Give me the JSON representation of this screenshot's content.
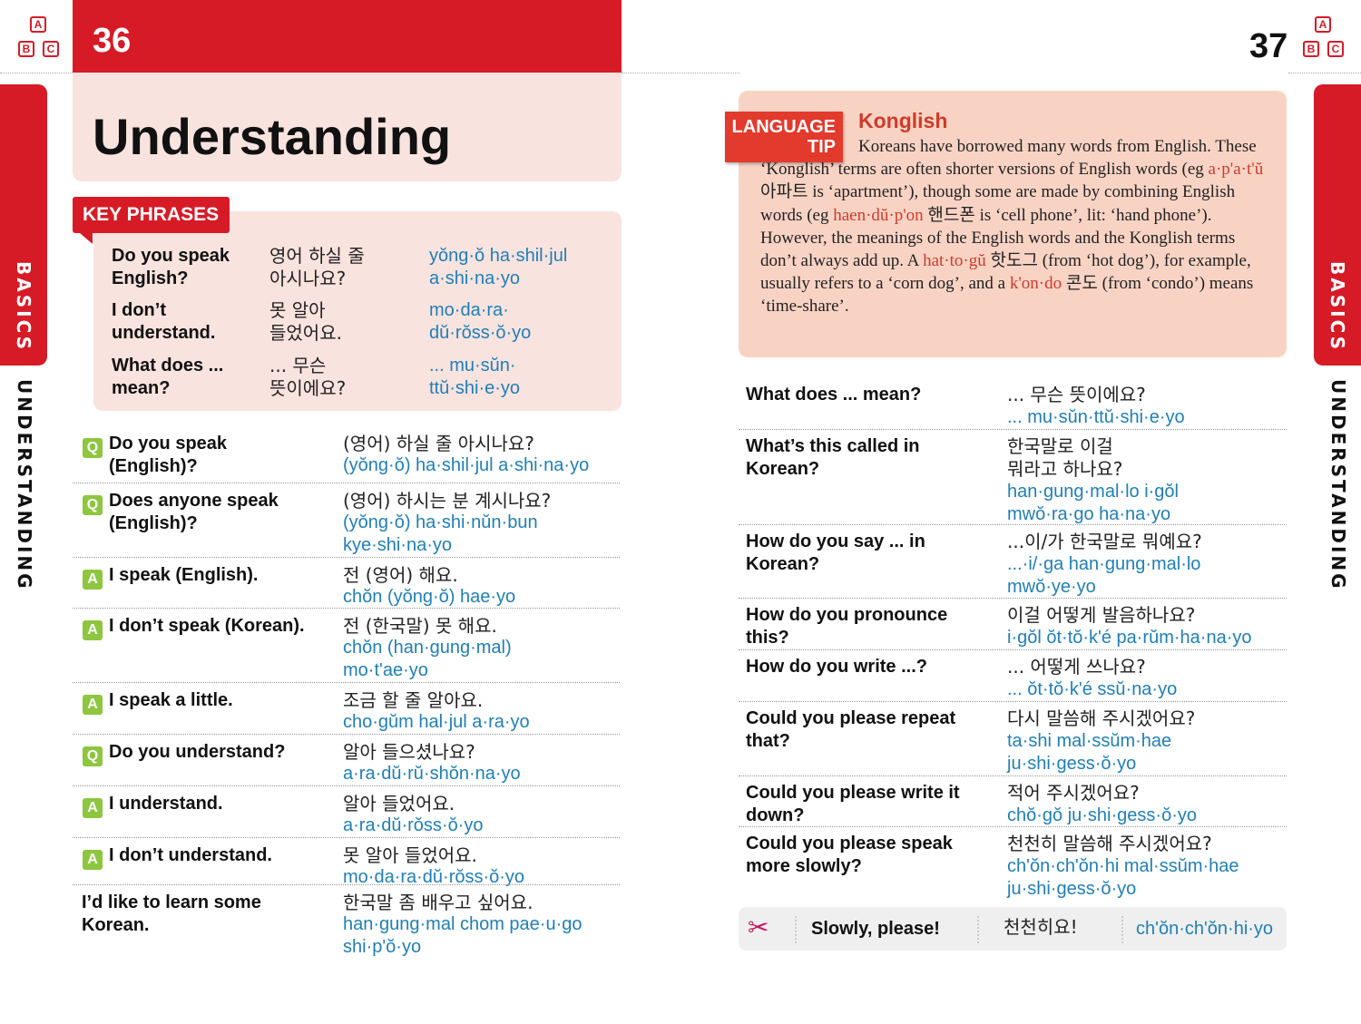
{
  "left": {
    "page_number": "36",
    "title": "Understanding",
    "side_tab": "BASICS",
    "side_label": "UNDERSTANDING",
    "blocks": [
      "A",
      "B",
      "C"
    ],
    "key_phrases": {
      "label": "KEY PHRASES",
      "rows": [
        {
          "en": "Do you speak\nEnglish?",
          "ko": "영어 하실 줄\n아시나요?",
          "rom": "yŏng·ŏ ha·shil·jul\na·shi·na·yo"
        },
        {
          "en": "I don’t\nunderstand.",
          "ko": "못 알아\n들었어요.",
          "rom": "mo·da·ra·\ndŭ·rŏss·ŏ·yo"
        },
        {
          "en": "What does ...\nmean?",
          "ko": "... 무슨\n뜻이에요?",
          "rom": "... mu·sŭn·\nttŭ·shi·e·yo"
        }
      ]
    },
    "phrases": [
      {
        "badge": "Q",
        "en": "Do you speak\n(English)?",
        "ko": "(영어) 하실 줄 아시나요?",
        "rom": "(yŏng·ŏ) ha·shil·jul a·shi·na·yo"
      },
      {
        "badge": "Q",
        "en": "Does anyone speak\n(English)?",
        "ko": "(영어) 하시는 분 계시나요?",
        "rom": "(yŏng·ŏ) ha·shi·nŭn·bun\nkye·shi·na·yo"
      },
      {
        "badge": "A",
        "en": "I speak (English).",
        "ko": "전 (영어) 해요.",
        "rom": "chŏn (yŏng·ŏ) hae·yo"
      },
      {
        "badge": "A",
        "en": "I don’t speak (Korean).",
        "ko": "전 (한국말) 못 해요.",
        "rom": "chŏn (han·gung·mal)\nmo·t'ae·yo"
      },
      {
        "badge": "A",
        "en": "I speak a little.",
        "ko": "조금 할 줄 알아요.",
        "rom": "cho·gŭm hal·jul a·ra·yo"
      },
      {
        "badge": "Q",
        "en": "Do you understand?",
        "ko": "알아 들으셨나요?",
        "rom": "a·ra·dŭ·rŭ·shŏn·na·yo"
      },
      {
        "badge": "A",
        "en": "I understand.",
        "ko": "알아 들었어요.",
        "rom": "a·ra·dŭ·rŏss·ŏ·yo"
      },
      {
        "badge": "A",
        "en": "I don’t understand.",
        "ko": "못 알아 들었어요.",
        "rom": "mo·da·ra·dŭ·rŏss·ŏ·yo"
      },
      {
        "badge": "",
        "en": "I’d like to learn some\nKorean.",
        "ko": "한국말 좀 배우고 싶어요.",
        "rom": "han·gung·mal chom pae·u·go\nshi·p'ŏ·yo"
      }
    ]
  },
  "right": {
    "page_number": "37",
    "side_tab": "BASICS",
    "side_label": "UNDERSTANDING",
    "blocks": [
      "A",
      "B",
      "C"
    ],
    "tip": {
      "label_1": "LANGUAGE",
      "label_2": "TIP",
      "title": "Konglish",
      "parts": [
        {
          "t": "Koreans have borrowed many words from English. These ‘Konglish’ terms are often shorter versions of English words (eg "
        },
        {
          "t": "a·p'a·t'ŭ",
          "h": true
        },
        {
          "t": " 아파트 is ‘apartment’), though some are made by combining English words (eg "
        },
        {
          "t": "haen·dŭ·p'on",
          "h": true
        },
        {
          "t": " 핸드폰 is ‘cell phone’, lit: ‘hand phone’). However, the meanings of the English words and the Konglish terms don’t always add up. A "
        },
        {
          "t": "hat·to·gŭ",
          "h": true
        },
        {
          "t": " 핫도그 (from ‘hot dog’), for example, usually refers to a ‘corn dog’, and a "
        },
        {
          "t": "k'on·do",
          "h": true
        },
        {
          "t": " 콘도 (from ‘condo’) means ‘time-share’."
        }
      ]
    },
    "phrases": [
      {
        "en": "What does ... mean?",
        "ko": "... 무슨 뜻이에요?",
        "rom": "... mu·sŭn·ttŭ·shi·e·yo"
      },
      {
        "en": "What’s this called in\nKorean?",
        "ko": "한국말로 이걸\n뭐라고 하나요?",
        "rom": "han·gung·mal·lo i·gŏl\nmwŏ·ra·go ha·na·yo"
      },
      {
        "en": "How do you say ... in\nKorean?",
        "ko": "...이/가 한국말로 뭐예요?",
        "rom": "...·i/·ga han·gung·mal·lo\nmwŏ·ye·yo"
      },
      {
        "en": "How do you pronounce\nthis?",
        "ko": "이걸 어떻게 발음하나요?",
        "rom": "i·gŏl ŏt·tŏ·k'é pa·rŭm·ha·na·yo"
      },
      {
        "en": "How do you write ...?",
        "ko": "... 어떻게 쓰나요?",
        "rom": "... ŏt·tŏ·k'é ssŭ·na·yo"
      },
      {
        "en": "Could you please repeat\nthat?",
        "ko": "다시 말씀해 주시겠어요?",
        "rom": "ta·shi mal·ssŭm·hae\nju·shi·gess·ŏ·yo"
      },
      {
        "en": "Could you please write it\ndown?",
        "ko": "적어 주시겠어요?",
        "rom": "chŏ·gŏ ju·shi·gess·ŏ·yo"
      },
      {
        "en": "Could you please speak\nmore slowly?",
        "ko": "천천히 말씀해 주시겠어요?",
        "rom": "ch'ŏn·ch'ŏn·hi mal·ssŭm·hae\nju·shi·gess·ŏ·yo"
      }
    ],
    "cut_out": {
      "icon": "scissors-icon",
      "en": "Slowly, please!",
      "ko": "천천히요!",
      "rom": "ch'ŏn·ch'ŏn·hi·yo"
    }
  },
  "colors": {
    "red": "#d61b27",
    "pink": "#f9e3de",
    "tip_bg": "#f8d3c4",
    "romanization": "#1f7fb8",
    "badge": "#8dc63f"
  }
}
